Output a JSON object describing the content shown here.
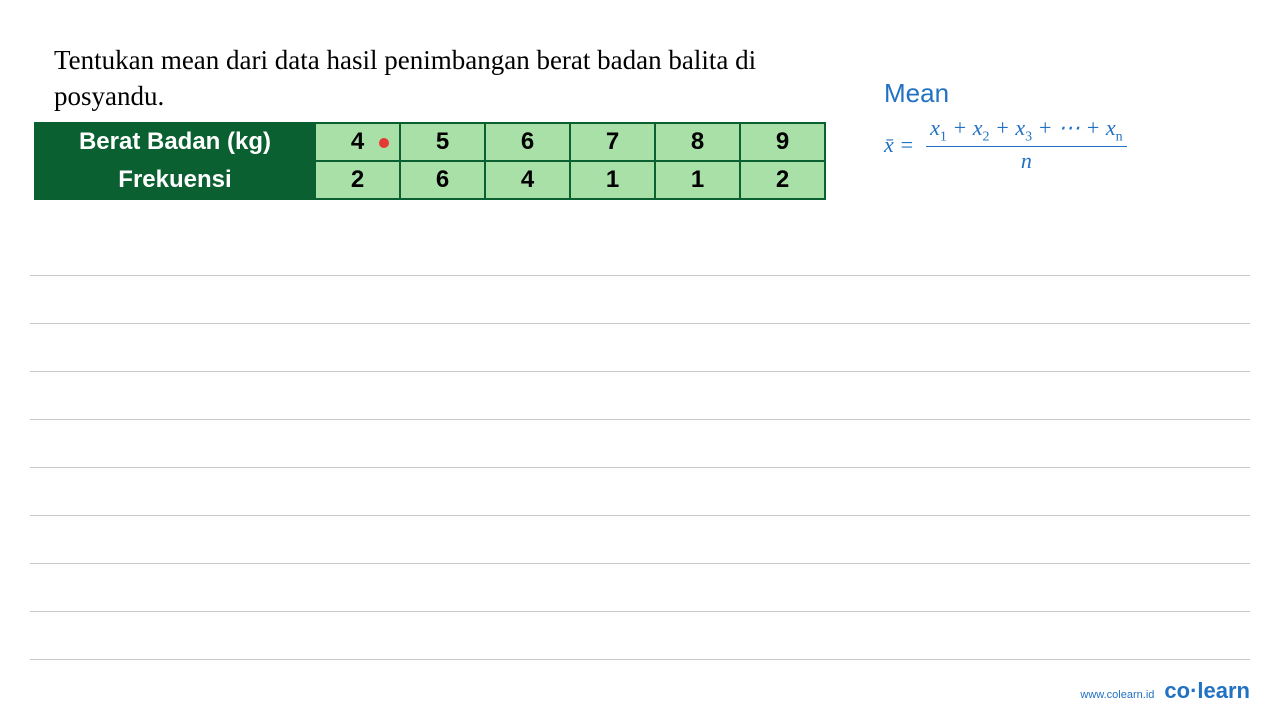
{
  "question": {
    "text": "Tentukan mean dari data hasil penimbangan berat badan balita di posyandu."
  },
  "table": {
    "row1_header": "Berat Badan (kg)",
    "row2_header": "Frekuensi",
    "columns": [
      "4",
      "5",
      "6",
      "7",
      "8",
      "9"
    ],
    "frequencies": [
      "2",
      "6",
      "4",
      "1",
      "1",
      "2"
    ],
    "header_bg": "#0a6030",
    "header_fg": "#ffffff",
    "cell_bg": "#a8e0a8",
    "border_color": "#0a6030",
    "red_marker_col": 0
  },
  "formula": {
    "title": "Mean",
    "lhs": "x̄ =",
    "numerator_parts": [
      "x",
      "1",
      " + x",
      "2",
      " + x",
      "3",
      " + ⋯ + x",
      "n"
    ],
    "denominator": "n",
    "color": "#2272c3"
  },
  "notepad": {
    "line_count": 9,
    "line_color": "#c8c8c8"
  },
  "footer": {
    "url": "www.colearn.id",
    "logo_co": "co",
    "logo_dot": "·",
    "logo_learn": "learn",
    "color": "#2272c3"
  }
}
